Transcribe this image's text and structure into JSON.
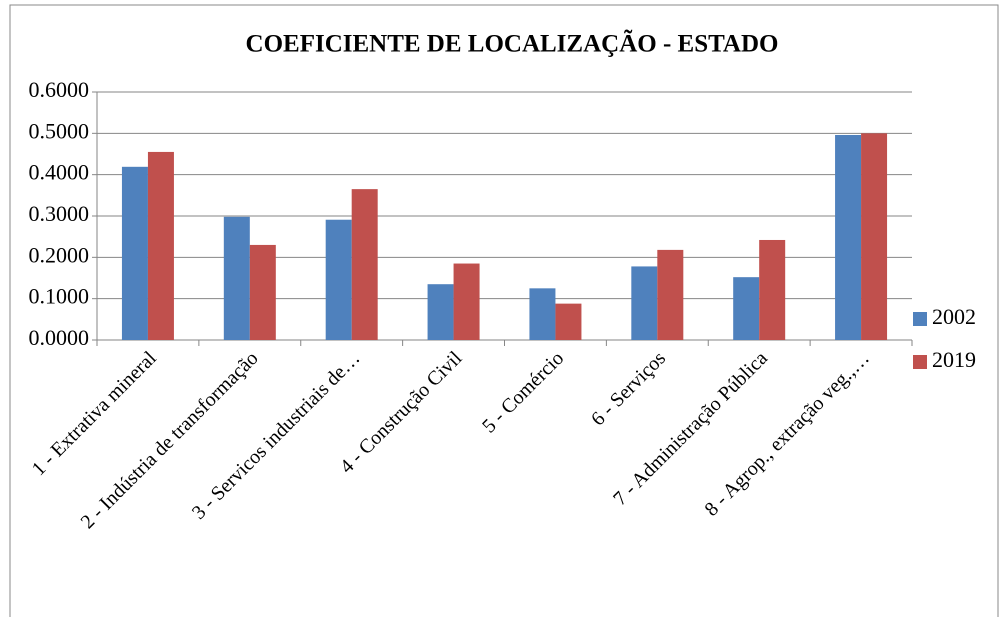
{
  "chart_data": {
    "type": "bar",
    "title": "COEFICIENTE DE LOCALIZAÇÃO - ESTADO",
    "categories": [
      "1 - Extrativa mineral",
      "2 - Indústria de transformação",
      "3 - Servicos industriais de…",
      "4 - Construção Civil",
      "5 - Comércio",
      "6 - Serviços",
      "7 - Administração Pública",
      "8 - Agrop., extração veg.,…"
    ],
    "series": [
      {
        "name": "2002",
        "color": "#4f81bd",
        "values": [
          0.419,
          0.298,
          0.291,
          0.135,
          0.125,
          0.178,
          0.152,
          0.496
        ]
      },
      {
        "name": "2019",
        "color": "#c0504d",
        "values": [
          0.455,
          0.23,
          0.365,
          0.185,
          0.088,
          0.218,
          0.242,
          0.5
        ]
      }
    ],
    "ylim": [
      0,
      0.6
    ],
    "yticks": [
      {
        "value": 0,
        "label": "0.0000"
      },
      {
        "value": 0.1,
        "label": "0.1000"
      },
      {
        "value": 0.2,
        "label": "0.2000"
      },
      {
        "value": 0.3,
        "label": "0.3000"
      },
      {
        "value": 0.4,
        "label": "0.4000"
      },
      {
        "value": 0.5,
        "label": "0.5000"
      },
      {
        "value": 0.6,
        "label": "0.6000"
      }
    ],
    "grid": true,
    "legend": "right"
  }
}
